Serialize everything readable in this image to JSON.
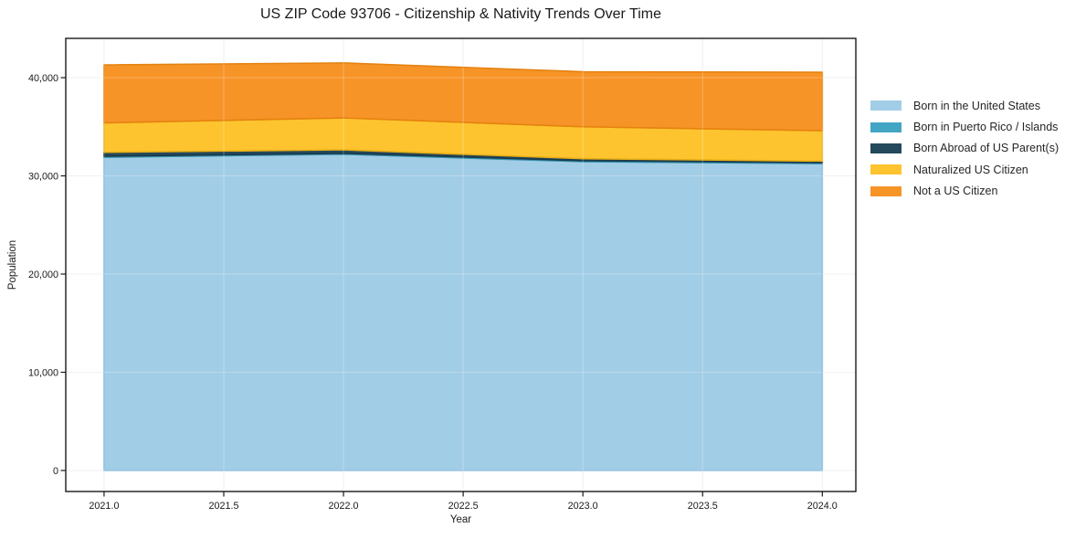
{
  "chart_data": {
    "type": "area",
    "stacked": true,
    "title": "US ZIP Code 93706 - Citizenship & Nativity Trends Over Time",
    "xlabel": "Year",
    "ylabel": "Population",
    "x": [
      2021.0,
      2022.0,
      2023.0,
      2024.0
    ],
    "series": [
      {
        "name": "Born in the United States",
        "color": "#a2cde6",
        "edge": "#82b8d6",
        "values": [
          31900,
          32200,
          31450,
          31250
        ]
      },
      {
        "name": "Born in Puerto Rico / Islands",
        "color": "#43a5c4",
        "edge": "#3391ad",
        "values": [
          100,
          100,
          100,
          100
        ]
      },
      {
        "name": "Born Abroad of US Parent(s)",
        "color": "#25495c",
        "edge": "#1b3a4a",
        "values": [
          400,
          350,
          200,
          150
        ]
      },
      {
        "name": "Naturalized US Citizen",
        "color": "#fdc42f",
        "edge": "#eaaf15",
        "values": [
          3000,
          3250,
          3250,
          3100
        ]
      },
      {
        "name": "Not a US Citizen",
        "color": "#f79428",
        "edge": "#e5820f",
        "values": [
          5900,
          5600,
          5600,
          5950
        ]
      }
    ],
    "totals": [
      41300,
      41500,
      40600,
      40550
    ],
    "xlim": [
      2020.84,
      2024.14
    ],
    "ylim": [
      -2140,
      44000
    ],
    "xticks": {
      "values": [
        2021.0,
        2021.5,
        2022.0,
        2022.5,
        2023.0,
        2023.5,
        2024.0
      ],
      "labels": [
        "2021.0",
        "2021.5",
        "2022.0",
        "2022.5",
        "2023.0",
        "2023.5",
        "2024.0"
      ]
    },
    "yticks": {
      "values": [
        0,
        10000,
        20000,
        30000,
        40000
      ],
      "labels": [
        "0",
        "10,000",
        "20,000",
        "30,000",
        "40,000"
      ]
    },
    "grid": true,
    "grid_color": "#ececec",
    "axis_color": "#1a1a1a",
    "legend_position": "right-outside"
  }
}
